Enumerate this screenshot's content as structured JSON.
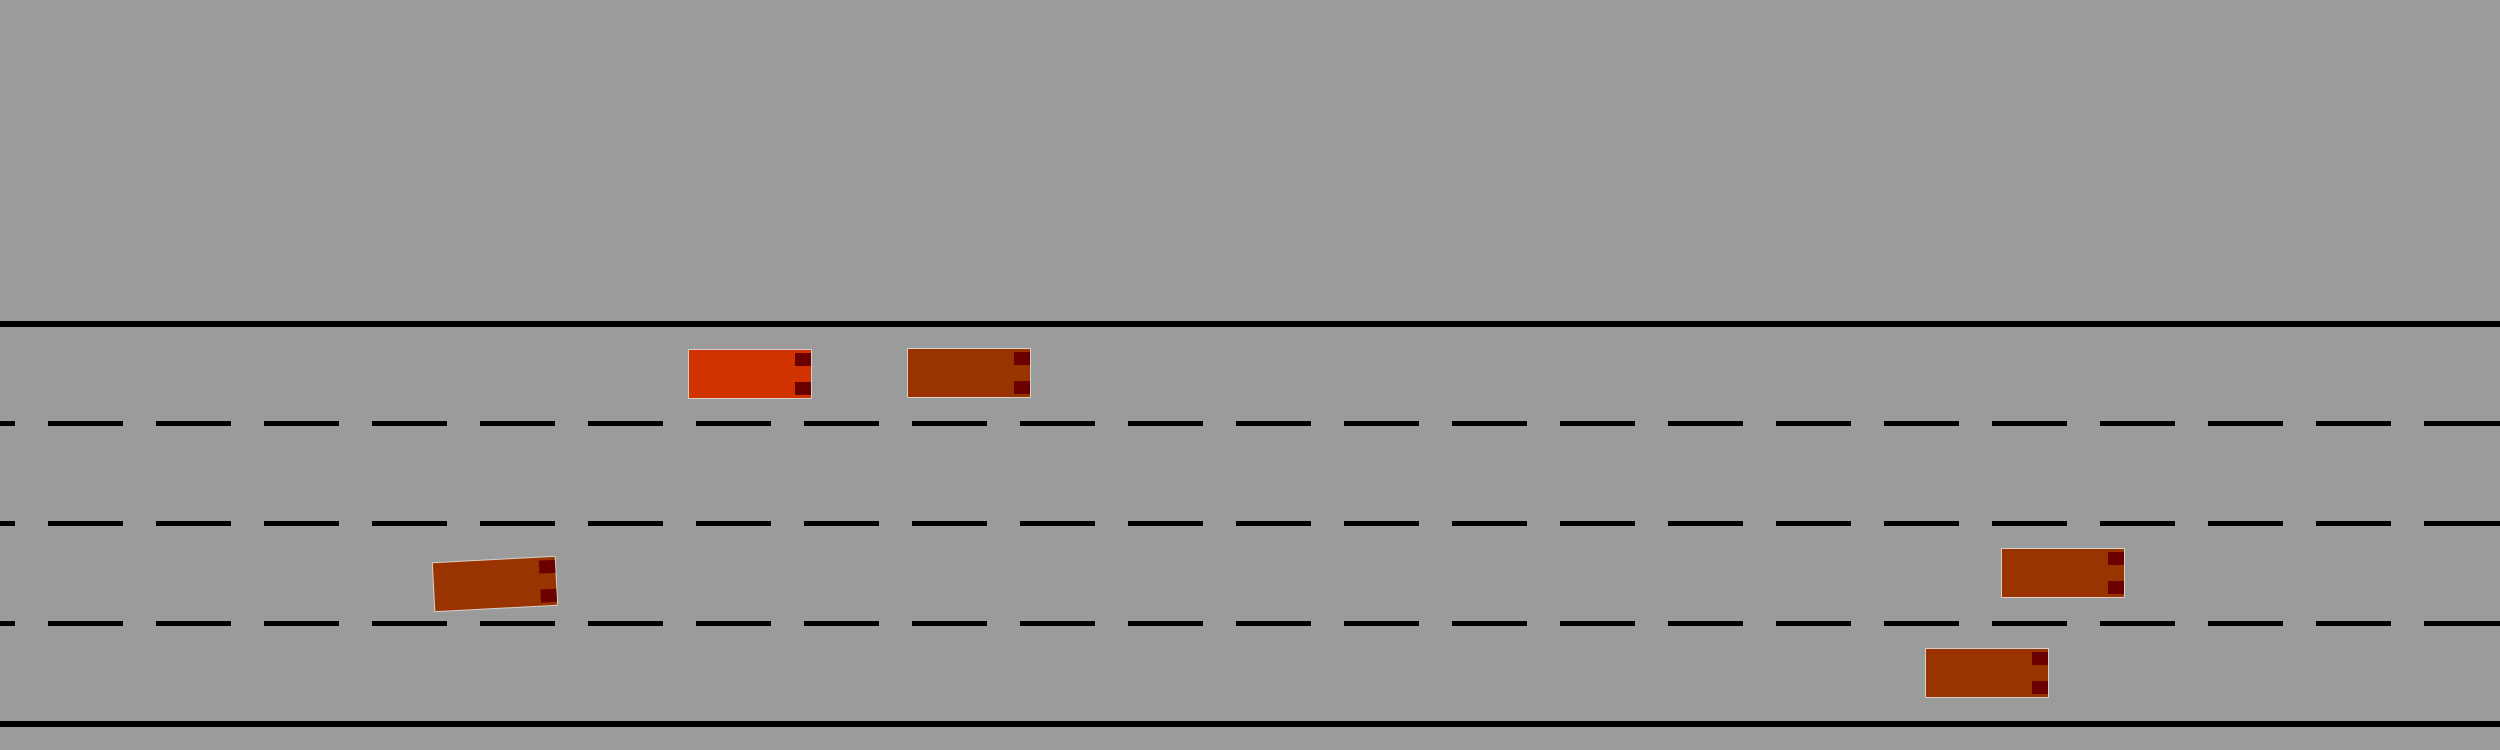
{
  "scene": {
    "type": "highway-driving-simulation",
    "lanes": 4,
    "colors": {
      "ground": "#9b9b9b",
      "road_lines": "#000000",
      "ego_car": "#d03300",
      "other_car": "#993300",
      "tail_light": "#6b0000"
    }
  },
  "vehicles": [
    {
      "name": "ego-vehicle",
      "lane": 1,
      "color": "#d03300",
      "heading_deg": 0
    },
    {
      "name": "vehicle-1",
      "lane": 1,
      "color": "#993300",
      "heading_deg": 0
    },
    {
      "name": "vehicle-2",
      "lane": 3,
      "color": "#993300",
      "heading_deg": -3
    },
    {
      "name": "vehicle-3",
      "lane": 3,
      "color": "#993300",
      "heading_deg": 0
    },
    {
      "name": "vehicle-4",
      "lane": 4,
      "color": "#993300",
      "heading_deg": 0
    }
  ]
}
